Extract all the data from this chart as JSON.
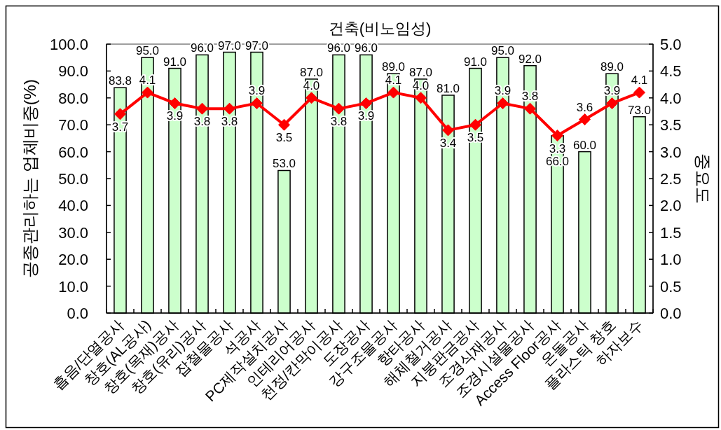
{
  "chart_data": {
    "type": "bar",
    "title": "건축(비노임성)",
    "ylabel": "공종관리하는 업체비중(%)",
    "y2label": "중요도",
    "categories": [
      "흡음/단열공사",
      "창호(AL공사)",
      "창호(목재)공사",
      "창호(유리)공사",
      "잡철물공사",
      "석공사",
      "PC제작설치공사",
      "인테리어공사",
      "천정/칸막이공사",
      "도장공사",
      "강구조물공사",
      "항타공사",
      "해체철거공사",
      "지붕판금공사",
      "조경식재공사",
      "조경시설물공사",
      "Access Floor공사",
      "온돌공사",
      "플라스틱 창호",
      "하자보수"
    ],
    "series": [
      {
        "type": "bar",
        "color": "#ccffcc",
        "values": [
          83.8,
          95,
          91,
          96,
          97,
          97,
          53,
          87,
          96,
          96,
          89,
          87,
          81,
          91,
          95,
          92,
          66,
          60,
          89,
          73
        ],
        "value_labels": [
          "83.8",
          "95.0",
          "91.0",
          "96.0",
          "97.0",
          "97.0",
          "53.0",
          "87.0",
          "96.0",
          "96.0",
          "89.0",
          "87.0",
          "81.0",
          "91.0",
          "95.0",
          "92.0",
          "66.0",
          "60.0",
          "89.0",
          "73.0"
        ]
      },
      {
        "type": "line",
        "axis": "y2",
        "color": "#ff0000",
        "values": [
          3.7,
          4.1,
          3.9,
          3.8,
          3.8,
          3.9,
          3.5,
          4.0,
          3.8,
          3.9,
          4.1,
          4.0,
          3.4,
          3.5,
          3.9,
          3.8,
          3.3,
          3.6,
          3.9,
          4.1
        ],
        "value_labels": [
          "3.7",
          "4.1",
          "3.9",
          "3.8",
          "3.8",
          "3.9",
          "3.5",
          "4.0",
          "3.8",
          "3.9",
          "4.1",
          "4.0",
          "3.4",
          "3.5",
          "3.9",
          "3.8",
          "3.3",
          "3.6",
          "3.9",
          "4.1"
        ]
      }
    ],
    "marker": "diamond",
    "ylim": [
      0,
      100
    ],
    "yticks": [
      {
        "value": 0,
        "label": "0.0"
      },
      {
        "value": 10,
        "label": "10.0"
      },
      {
        "value": 20,
        "label": "20.0"
      },
      {
        "value": 30,
        "label": "30.0"
      },
      {
        "value": 40,
        "label": "40.0"
      },
      {
        "value": 50,
        "label": "50.0"
      },
      {
        "value": 60,
        "label": "60.0"
      },
      {
        "value": 70,
        "label": "70.0"
      },
      {
        "value": 80,
        "label": "80.0"
      },
      {
        "value": 90,
        "label": "90.0"
      },
      {
        "value": 100,
        "label": "100.0"
      }
    ],
    "y2lim": [
      0,
      5
    ],
    "y2ticks": [
      {
        "value": 0,
        "label": "0.0"
      },
      {
        "value": 0.5,
        "label": "0.5"
      },
      {
        "value": 1,
        "label": "1.0"
      },
      {
        "value": 1.5,
        "label": "1.5"
      },
      {
        "value": 2,
        "label": "2.0"
      },
      {
        "value": 2.5,
        "label": "2.5"
      },
      {
        "value": 3,
        "label": "3.0"
      },
      {
        "value": 3.5,
        "label": "3.5"
      },
      {
        "value": 4,
        "label": "4.0"
      },
      {
        "value": 4.5,
        "label": "4.5"
      },
      {
        "value": 5,
        "label": "5.0"
      }
    ]
  }
}
